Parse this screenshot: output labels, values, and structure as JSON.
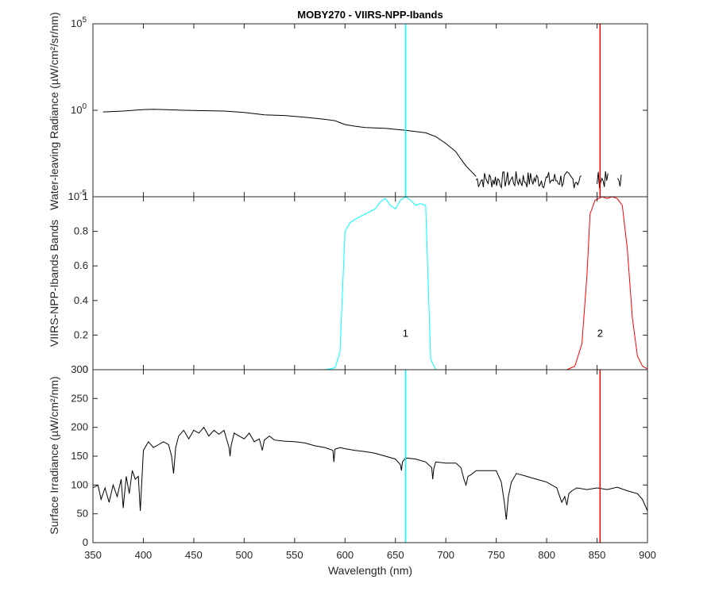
{
  "chart_data": [
    {
      "type": "line",
      "panel": "radiance",
      "title": "MOBY270 - VIIRS-NPP-Ibands",
      "ylabel": "Water-leaving Radiance (µW/cm²/sr/nm)",
      "xlim": [
        350,
        900
      ],
      "ylim": [
        1e-05,
        100000
      ],
      "yscale": "log",
      "ytick_labels": [
        {
          "base": "10",
          "exp": "5"
        },
        {
          "base": "10",
          "exp": "0"
        },
        {
          "base": "10",
          "exp": "-5"
        }
      ],
      "series": [
        {
          "color": "#000000",
          "x": [
            360,
            380,
            400,
            410,
            420,
            440,
            460,
            480,
            500,
            520,
            540,
            560,
            580,
            590,
            600,
            610,
            620,
            640,
            660,
            680,
            690,
            700,
            710,
            715,
            720,
            725,
            730
          ],
          "y": [
            0.8,
            0.9,
            1.1,
            1.15,
            1.1,
            1.0,
            0.95,
            0.9,
            0.75,
            0.55,
            0.5,
            0.4,
            0.3,
            0.25,
            0.15,
            0.12,
            0.1,
            0.09,
            0.07,
            0.05,
            0.03,
            0.012,
            0.004,
            0.0015,
            0.0006,
            0.0003,
            0.00015
          ]
        }
      ],
      "noise_segment": {
        "x_range": [
          730,
          875
        ],
        "y_range": [
          3e-05,
          0.0003
        ],
        "gaps": [
          [
            835,
            850
          ],
          [
            862,
            870
          ]
        ]
      },
      "band_lines": [
        {
          "band": "1",
          "x": 660,
          "color": "#00ffff"
        },
        {
          "band": "2",
          "x": 853,
          "color": "#ff0000"
        }
      ]
    },
    {
      "type": "line",
      "panel": "bands",
      "ylabel": "VIIRS-NPP-Ibands Bands",
      "xlim": [
        350,
        900
      ],
      "ylim": [
        0,
        1
      ],
      "ytick_labels": [
        "0",
        "0.2",
        "0.4",
        "0.6",
        "0.8",
        "1"
      ],
      "series": [
        {
          "color": "#00ffff",
          "x": [
            360,
            580,
            590,
            595,
            600,
            605,
            610,
            620,
            630,
            635,
            640,
            645,
            650,
            655,
            660,
            665,
            670,
            675,
            680,
            682,
            685,
            690,
            900
          ],
          "y": [
            0,
            0,
            0.01,
            0.1,
            0.8,
            0.85,
            0.87,
            0.9,
            0.93,
            0.97,
            0.99,
            0.95,
            0.93,
            0.98,
            1.0,
            0.98,
            0.95,
            0.96,
            0.95,
            0.6,
            0.06,
            0.0,
            0.0
          ]
        },
        {
          "color": "#ff0000",
          "x": [
            360,
            820,
            828,
            835,
            840,
            843,
            848,
            855,
            860,
            865,
            870,
            875,
            880,
            885,
            890,
            895,
            900
          ],
          "y": [
            0,
            0,
            0.02,
            0.15,
            0.55,
            0.9,
            0.98,
            1.0,
            0.99,
            1.0,
            0.99,
            0.95,
            0.7,
            0.3,
            0.08,
            0.02,
            0.005
          ]
        }
      ],
      "annotations": [
        {
          "text": "1",
          "x": 660,
          "y": 0.19
        },
        {
          "text": "2",
          "x": 853,
          "y": 0.19
        }
      ]
    },
    {
      "type": "line",
      "panel": "irradiance",
      "ylabel": "Surface Irradiance (µW/cm²/nm)",
      "xlabel": "Wavelength (nm)",
      "xlim": [
        350,
        900
      ],
      "ylim": [
        0,
        300
      ],
      "ytick_labels": [
        "0",
        "50",
        "100",
        "150",
        "200",
        "250",
        "300"
      ],
      "xtick_labels": [
        "350",
        "400",
        "450",
        "500",
        "550",
        "600",
        "650",
        "700",
        "750",
        "800",
        "850",
        "900"
      ],
      "series": [
        {
          "color": "#000000",
          "x": [
            350,
            355,
            358,
            362,
            366,
            370,
            374,
            378,
            380,
            383,
            386,
            389,
            392,
            395,
            397,
            400,
            405,
            410,
            415,
            420,
            425,
            428,
            430,
            432,
            435,
            440,
            445,
            450,
            455,
            460,
            465,
            470,
            475,
            480,
            485,
            486,
            487,
            490,
            495,
            500,
            505,
            510,
            515,
            518,
            520,
            525,
            530,
            540,
            550,
            560,
            570,
            580,
            588,
            589,
            590,
            595,
            600,
            610,
            620,
            630,
            640,
            650,
            655,
            656,
            657,
            660,
            670,
            680,
            686,
            687,
            688,
            690,
            700,
            710,
            715,
            718,
            720,
            722,
            725,
            730,
            740,
            750,
            755,
            758,
            760,
            762,
            765,
            770,
            780,
            790,
            800,
            810,
            815,
            818,
            820,
            822,
            825,
            830,
            840,
            850,
            860,
            870,
            880,
            890,
            895,
            900
          ],
          "y": [
            95,
            100,
            75,
            95,
            70,
            100,
            80,
            110,
            60,
            115,
            85,
            125,
            110,
            115,
            55,
            160,
            175,
            165,
            170,
            175,
            170,
            150,
            120,
            165,
            185,
            195,
            180,
            195,
            190,
            200,
            185,
            195,
            188,
            195,
            165,
            150,
            168,
            190,
            185,
            180,
            190,
            175,
            180,
            160,
            178,
            185,
            178,
            176,
            175,
            173,
            168,
            165,
            160,
            140,
            162,
            165,
            163,
            160,
            158,
            155,
            150,
            145,
            135,
            125,
            140,
            147,
            145,
            140,
            130,
            110,
            128,
            140,
            138,
            138,
            130,
            110,
            100,
            115,
            118,
            125,
            125,
            125,
            105,
            70,
            40,
            80,
            105,
            120,
            115,
            110,
            105,
            95,
            70,
            80,
            65,
            85,
            90,
            95,
            92,
            95,
            92,
            96,
            90,
            85,
            75,
            55
          ]
        }
      ],
      "band_lines": [
        {
          "band": "1",
          "x": 660,
          "color": "#00ffff"
        },
        {
          "band": "2",
          "x": 853,
          "color": "#ff0000"
        }
      ]
    }
  ]
}
